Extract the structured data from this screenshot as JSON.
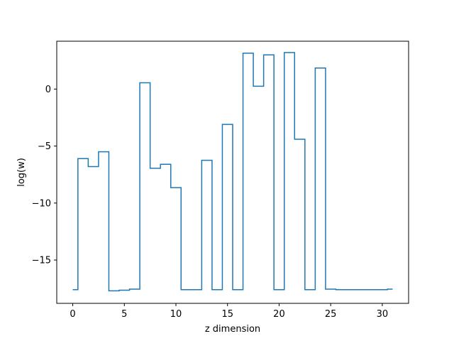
{
  "chart_data": {
    "type": "line",
    "drawstyle": "steps-mid",
    "title": "",
    "xlabel": "z dimension",
    "ylabel": "log(w)",
    "xlim": [
      -1.55,
      32.55
    ],
    "ylim": [
      -18.8,
      4.2
    ],
    "xticks": [
      0,
      5,
      10,
      15,
      20,
      25,
      30
    ],
    "yticks": [
      0,
      -5,
      -10,
      -15
    ],
    "grid": false,
    "legend": "none",
    "series": [
      {
        "color": "#1f77b4",
        "x": [
          0,
          1,
          2,
          3,
          4,
          5,
          6,
          7,
          8,
          9,
          10,
          11,
          12,
          13,
          14,
          15,
          16,
          17,
          18,
          19,
          20,
          21,
          22,
          23,
          24,
          25,
          26,
          27,
          28,
          29,
          30,
          31
        ],
        "y": [
          -17.6,
          -6.1,
          -6.8,
          -5.5,
          -17.7,
          -17.65,
          -17.55,
          0.55,
          -6.95,
          -6.6,
          -8.65,
          -17.6,
          -17.6,
          -6.25,
          -17.6,
          -3.1,
          -17.6,
          3.15,
          0.25,
          3.0,
          -17.6,
          3.2,
          -4.4,
          -17.6,
          1.85,
          -17.55,
          -17.6,
          -17.6,
          -17.6,
          -17.6,
          -17.6,
          -17.55
        ]
      }
    ]
  }
}
